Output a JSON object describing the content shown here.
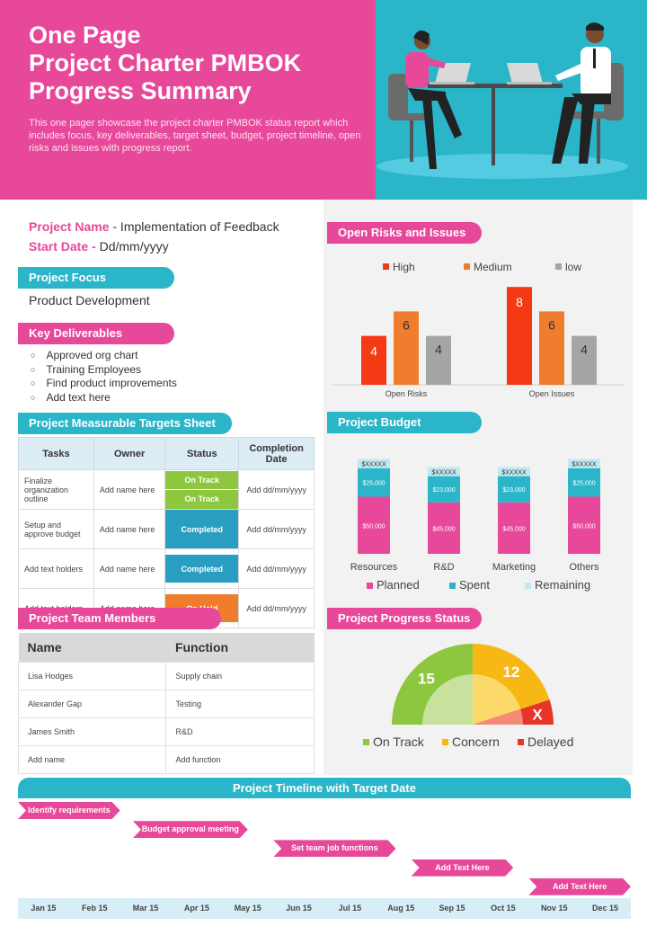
{
  "header": {
    "title_lines": [
      "One Page",
      "Project Charter PMBOK",
      "Progress Summary"
    ],
    "description": "This one pager showcase the project charter PMBOK status report which includes focus, key deliverables, target sheet, budget, project timeline, open risks and issues with progress report."
  },
  "project": {
    "name_label": "Project Name -",
    "name_value": " Implementation of Feedback",
    "start_label": "Start Date -",
    "start_value": " Dd/mm/yyyy"
  },
  "focus": {
    "heading": "Project Focus",
    "text": "Product Development"
  },
  "deliverables": {
    "heading": "Key Deliverables",
    "items": [
      "Approved org chart",
      "Training Employees",
      "Find product improvements",
      "Add text here"
    ]
  },
  "targets": {
    "heading": "Project Measurable Targets Sheet",
    "columns": [
      "Tasks",
      "Owner",
      "Status",
      "Completion Date"
    ],
    "rows": [
      {
        "task": "Finalize organization outline",
        "owner": "Add name here",
        "status": [
          "On Track",
          "On Track"
        ],
        "date": "Add dd/mm/yyyy"
      },
      {
        "task": "Setup and approve budget",
        "owner": "Add name here",
        "status": [
          "Completed"
        ],
        "date": "Add dd/mm/yyyy"
      },
      {
        "task": "Add text holders",
        "owner": "Add name here",
        "status": [
          "Completed"
        ],
        "date": "Add dd/mm/yyyy"
      },
      {
        "task": "Add text holders",
        "owner": "Add name here",
        "status": [
          "On Hold"
        ],
        "date": "Add dd/mm/yyyy"
      }
    ]
  },
  "team": {
    "heading": "Project Team Members",
    "columns": [
      "Name",
      "Function"
    ],
    "rows": [
      [
        "Lisa Hodges",
        "Supply chain"
      ],
      [
        "Alexander Gap",
        "Testing"
      ],
      [
        "James Smith",
        "R&D"
      ],
      [
        "Add name",
        "Add function"
      ]
    ]
  },
  "risks": {
    "heading": "Open Risks  and Issues"
  },
  "budget": {
    "heading": "Project Budget"
  },
  "progress": {
    "heading": "Project Progress  Status"
  },
  "colors": {
    "pink": "#e8489a",
    "teal": "#2ab5c8",
    "high": "#f33a14",
    "medium": "#ef7d2d",
    "low": "#a5a5a5",
    "planned": "#e8489a",
    "spent": "#2ab5c8",
    "remaining": "#bfe8f0",
    "on_track": "#8dc63f",
    "concern": "#f7b815",
    "delayed": "#e8352a"
  },
  "chart_data": [
    {
      "type": "bar",
      "categories": [
        "Open Risks",
        "Open Issues"
      ],
      "series": [
        {
          "name": "High",
          "values": [
            4,
            8
          ]
        },
        {
          "name": "Medium",
          "values": [
            6,
            6
          ]
        },
        {
          "name": "low",
          "values": [
            4,
            4
          ]
        }
      ],
      "legend": "top"
    },
    {
      "type": "bar",
      "stacked": true,
      "categories": [
        "Resources",
        "R&D",
        "Marketing",
        "Others"
      ],
      "series": [
        {
          "name": "Planned",
          "values": [
            50000,
            45000,
            45000,
            50000
          ],
          "labels": [
            "$50,000",
            "$45,000",
            "$45,000",
            "$50,000"
          ]
        },
        {
          "name": "Spent",
          "values": [
            25000,
            23000,
            23000,
            25000
          ],
          "labels": [
            "$25,000",
            "$23,000",
            "$23,000",
            "$25,000"
          ]
        },
        {
          "name": "Remaining",
          "values": [
            8000,
            8000,
            8000,
            8000
          ],
          "labels": [
            "$XXXXX",
            "$XXXXX",
            "$XXXXX",
            "$XXXXX"
          ]
        }
      ],
      "legend": "bottom"
    },
    {
      "type": "pie",
      "shape": "half-donut",
      "slices": [
        {
          "name": "On Track",
          "value": 15,
          "label": "15"
        },
        {
          "name": "Concern",
          "value": 12,
          "label": "12"
        },
        {
          "name": "Delayed",
          "value": 3,
          "label": "X"
        }
      ],
      "legend": "bottom"
    }
  ],
  "timeline": {
    "heading": "Project Timeline with Target Date",
    "tasks": [
      {
        "label": "Identify requirements",
        "start": 0,
        "end": 2
      },
      {
        "label": "Budget approval meeting",
        "start": 2.25,
        "end": 4.5
      },
      {
        "label": "Set team job functions",
        "start": 5,
        "end": 7.4
      },
      {
        "label": "Add Text Here",
        "start": 7.7,
        "end": 9.7
      },
      {
        "label": "Add Text Here",
        "start": 10,
        "end": 12
      }
    ],
    "months": [
      "Jan 15",
      "Feb 15",
      "Mar 15",
      "Apr 15",
      "May 15",
      "Jun 15",
      "Jul 15",
      "Aug 15",
      "Sep 15",
      "Oct 15",
      "Nov 15",
      "Dec 15"
    ]
  }
}
